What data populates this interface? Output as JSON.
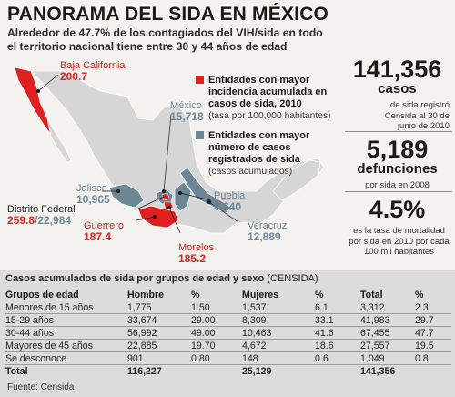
{
  "header": {
    "title": "PANORAMA DEL SIDA EN MÉXICO",
    "subtitle": "Alrededor de 47.7% de los contagiados del VIH/sida en todo el territorio nacional tiene entre 30 y 44 años de edad"
  },
  "map": {
    "states": [
      {
        "name": "Baja California",
        "value": "200.7",
        "color": "red"
      },
      {
        "name": "México",
        "value": "15,718",
        "color": "blue"
      },
      {
        "name": "Jalisco",
        "value": "10,965",
        "color": "blue"
      },
      {
        "name": "Puebla",
        "value": "6,640",
        "color": "blue"
      },
      {
        "name": "Distrito Federal",
        "value_rate": "259.8",
        "value_cases": "/22,984",
        "color": "mixed"
      },
      {
        "name": "Guerrero",
        "value": "187.4",
        "color": "red"
      },
      {
        "name": "Veracruz",
        "value": "12,889",
        "color": "blue"
      },
      {
        "name": "Morelos",
        "value": "185.2",
        "color": "red"
      }
    ],
    "colors": {
      "red": "#e02020",
      "blue": "#6e8596",
      "land": "#d6d6d6",
      "border": "#ffffff"
    }
  },
  "legend": [
    {
      "heading": "Entidades con mayor incidencia acumulada en casos de sida, 2010",
      "sub": "(tasa por 100,000 habitantes)",
      "color": "#e02020"
    },
    {
      "heading": "Entidades con mayor número de casos registrados de sida",
      "sub": "(casos acumulados)",
      "color": "#6e8596"
    }
  ],
  "stats": [
    {
      "big": "141,356",
      "unit": "casos",
      "desc": "de sida registró Censida al 30 de junio de 2010"
    },
    {
      "big": "5,189",
      "unit": "defunciones",
      "desc": "por sida en 2008"
    },
    {
      "big": "4.5%",
      "unit": "",
      "desc": "es la tasa de mortalidad por sida en 2010 por cada 100 mil habitantes"
    }
  ],
  "table": {
    "caption": "Casos acumulados de sida por grupos de edad y sexo",
    "caption_source": "(CENSIDA)",
    "headers": [
      "Grupos de edad",
      "Hombre",
      "%",
      "Mujeres",
      "%",
      "Total",
      "%"
    ],
    "rows": [
      [
        "Menores de 15 años",
        "1,775",
        "1.50",
        "1,537",
        "6.1",
        "3,312",
        "2.3"
      ],
      [
        "15-29 años",
        "33,674",
        "29.00",
        "8,309",
        "33.1",
        "41,983",
        "29.7"
      ],
      [
        "30-44 años",
        "56,992",
        "49.00",
        "10,463",
        "41.6",
        "67,455",
        "47.7"
      ],
      [
        "Mayores de 45 años",
        "22,885",
        "19.70",
        "4,672",
        "18.6",
        "27,557",
        "19.5"
      ],
      [
        "Se desconoce",
        "901",
        "0.80",
        "148",
        "0.6",
        "1,049",
        "0.8"
      ]
    ],
    "total": [
      "Total",
      "116,227",
      "",
      "25,129",
      "",
      "141,356",
      ""
    ],
    "source": "Fuente: Censida"
  }
}
